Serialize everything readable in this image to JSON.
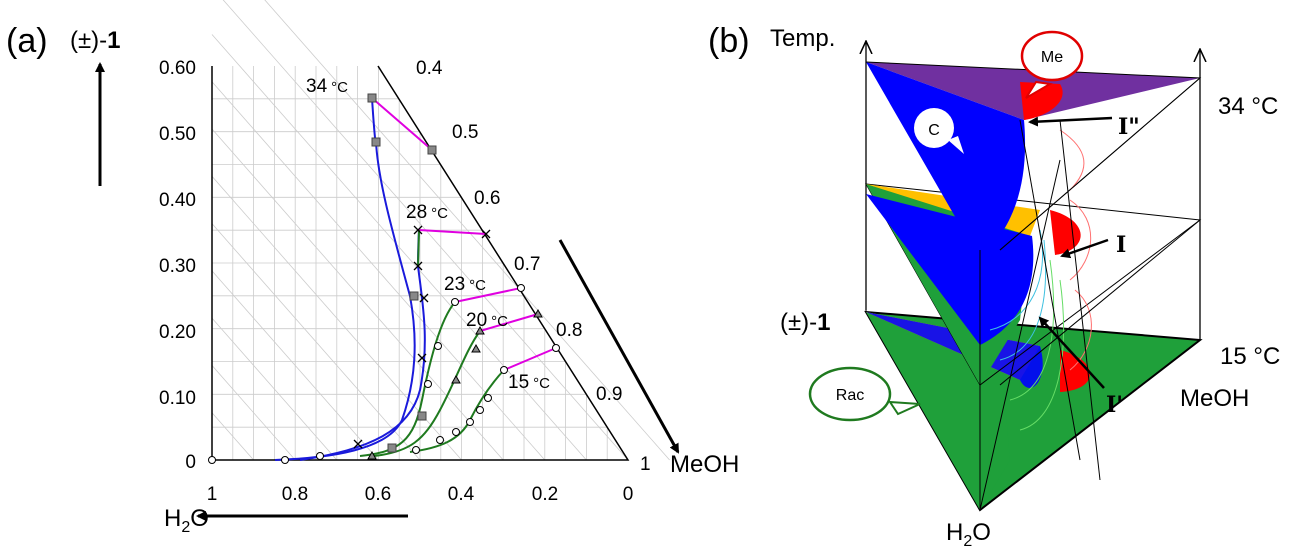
{
  "panel_a": {
    "label": "(a)",
    "y_axis_label": "(±)-",
    "y_axis_label_bold": "1",
    "x_axis_label_h2o_prefix": "H",
    "x_axis_label_h2o_sub": "2",
    "x_axis_label_h2o_suffix": "O",
    "meoh_label": "MeOH",
    "meoh_tick_1": "1",
    "y_ticks": [
      "0.60",
      "0.50",
      "0.40",
      "0.30",
      "0.20",
      "0.10",
      "0"
    ],
    "x_ticks": [
      "1",
      "0.8",
      "0.6",
      "0.4",
      "0.2",
      "0"
    ],
    "hyp_ticks": [
      "0.4",
      "0.5",
      "0.6",
      "0.7",
      "0.8",
      "0.9"
    ],
    "temps": [
      {
        "value": "34",
        "unit": "°C"
      },
      {
        "value": "28",
        "unit": "°C"
      },
      {
        "value": "23",
        "unit": "°C"
      },
      {
        "value": "20",
        "unit": "°C"
      },
      {
        "value": "15",
        "unit": "°C"
      }
    ],
    "colors": {
      "conglomerate": "#1a1adb",
      "racemate": "#1f7a1f",
      "tie_line": "#e000e0",
      "grid": "#c8c8c8",
      "marker": "#888888"
    }
  },
  "panel_b": {
    "label": "(b)",
    "axis_temp": "Temp.",
    "axis_meoh": "MeOH",
    "axis_rac_prefix": "(±)-",
    "axis_rac_bold": "1",
    "axis_h2o_prefix": "H",
    "axis_h2o_sub": "2",
    "axis_h2o_suffix": "O",
    "temp_top": "34 °C",
    "temp_bottom": "15 °C",
    "point_i_double_prime": "I\"",
    "point_i": "I",
    "point_i_prime": "I'",
    "bubble_me": "Me",
    "bubble_c": "C",
    "bubble_rac": "Rac",
    "colors": {
      "conglomerate": "#0000ff",
      "racemate": "#1fa03a",
      "methanolate": "#ff0000",
      "intermediate": "#ffc000",
      "top_cap": "#7030a0"
    }
  }
}
